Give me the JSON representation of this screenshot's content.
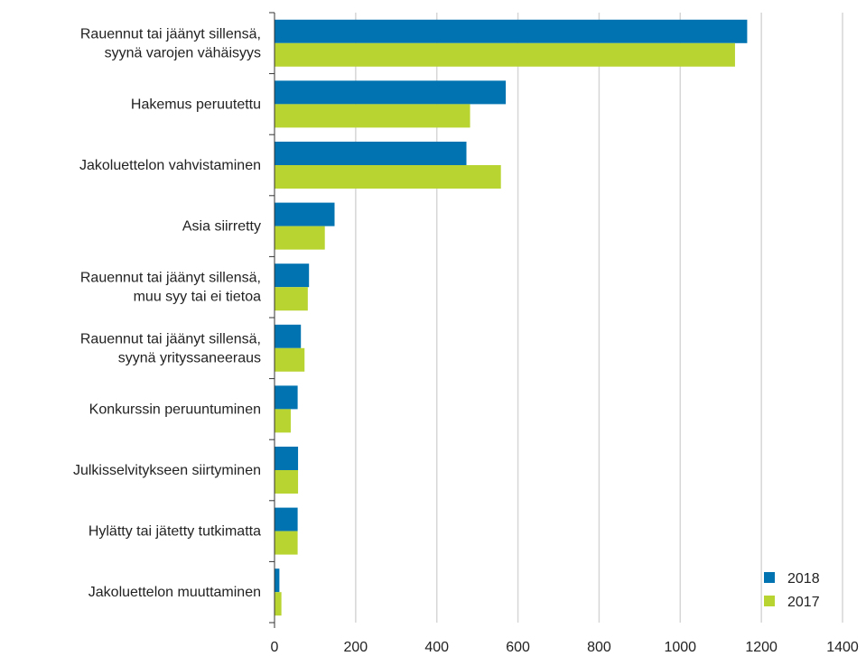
{
  "chart_data": {
    "type": "bar",
    "orientation": "horizontal",
    "categories": [
      [
        "Rauennut tai jäänyt sillensä,",
        "syynä varojen vähäisyys"
      ],
      [
        "Hakemus peruutettu"
      ],
      [
        "Jakoluettelon vahvistaminen"
      ],
      [
        "Asia siirretty"
      ],
      [
        "Rauennut tai jäänyt sillensä,",
        "muu syy tai ei tietoa"
      ],
      [
        "Rauennut tai jäänyt sillensä,",
        "syynä yrityssaneeraus"
      ],
      [
        "Konkurssin peruuntuminen"
      ],
      [
        "Julkisselvitykseen siirtyminen"
      ],
      [
        "Hylätty tai jätetty tutkimatta"
      ],
      [
        "Jakoluettelon muuttaminen"
      ]
    ],
    "series": [
      {
        "name": "2018",
        "color": "#0073b0",
        "values": [
          1165,
          570,
          473,
          148,
          85,
          65,
          57,
          58,
          57,
          12
        ]
      },
      {
        "name": "2017",
        "color": "#b8d431",
        "values": [
          1135,
          482,
          558,
          124,
          82,
          74,
          40,
          58,
          57,
          17
        ]
      }
    ],
    "xlim": [
      0,
      1400
    ],
    "xticks": [
      "0",
      "200",
      "400",
      "600",
      "800",
      "1000",
      "1200",
      "1400"
    ],
    "grid": "vertical",
    "legend_position": "bottom-right",
    "title": "",
    "xlabel": "",
    "ylabel": ""
  }
}
